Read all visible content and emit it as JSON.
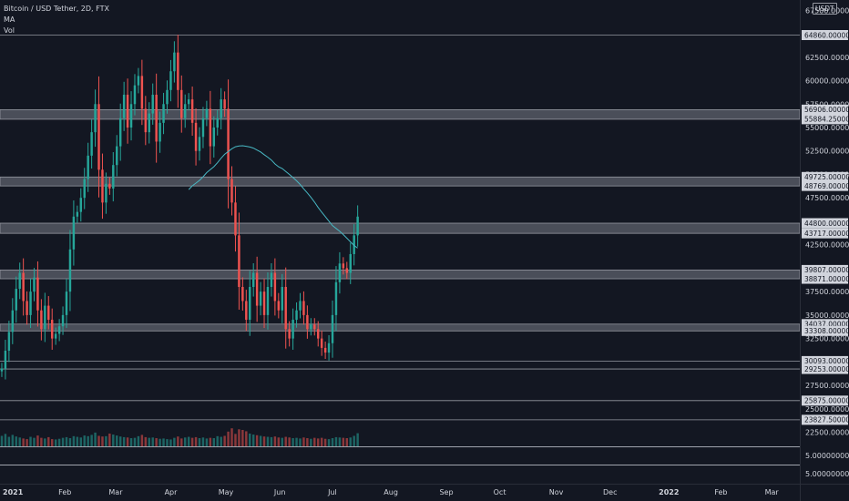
{
  "legend": {
    "symbol": "Bitcoin / USD Tether, 2D, FTX",
    "indicator1": "MA",
    "indicator2": "Vol"
  },
  "currency_badge": "USDT",
  "price_axis_labels": [
    "67500.00000000",
    "62500.00000000",
    "60000.00000000",
    "57500.00000000",
    "55000.00000000",
    "52500.00000000",
    "50000.00000000",
    "47500.00000000",
    "42500.00000000",
    "37500.00000000",
    "35000.00000000",
    "32500.00000000",
    "27500.00000000",
    "25000.00000000",
    "22500.00000000"
  ],
  "level_labels": [
    "64860.00000000",
    "56906.00000000",
    "55884.25000000",
    "49725.00000000",
    "48769.00000000",
    "44800.00000000",
    "43717.00000000",
    "39807.00000000",
    "38871.00000000",
    "34037.00000000",
    "33308.00000000",
    "30093.00000000",
    "29253.00000000",
    "25875.00000000",
    "23827.50000000"
  ],
  "sub_pane_labels": [
    "5.00000000",
    "5.00000000"
  ],
  "time_axis_labels": [
    "2021",
    "Feb",
    "Mar",
    "Apr",
    "May",
    "Jun",
    "Jul",
    "Aug",
    "Sep",
    "Oct",
    "Nov",
    "Dec",
    "2022",
    "Feb",
    "Mar"
  ],
  "colors": {
    "background": "#131722",
    "up": "#26a69a",
    "down": "#ef5350",
    "ma": "#48b8c4",
    "zone": "#787b86"
  },
  "chart_data": {
    "type": "candlestick",
    "title": "Bitcoin / USD Tether, 2D, FTX",
    "ylim": [
      21000,
      68600
    ],
    "x_range": [
      "2021-01-01",
      "2022-03-22"
    ],
    "zones": [
      [
        55884.25,
        56906
      ],
      [
        48769,
        49725
      ],
      [
        43717,
        44800
      ],
      [
        38871,
        39807
      ],
      [
        33308,
        34037
      ]
    ],
    "lines": [
      64860,
      30093,
      29253,
      25875,
      23827.5
    ],
    "closes": [
      29300,
      31200,
      33200,
      35500,
      37800,
      39500,
      36500,
      35000,
      37500,
      39000,
      35500,
      33500,
      36000,
      34500,
      32500,
      33000,
      33800,
      35000,
      37500,
      42000,
      45500,
      46000,
      47500,
      49500,
      52000,
      54500,
      57500,
      50500,
      47000,
      49000,
      48500,
      51000,
      53000,
      56000,
      58500,
      55000,
      57500,
      59500,
      60500,
      57000,
      54500,
      56500,
      58500,
      53500,
      55500,
      57500,
      59000,
      61000,
      63000,
      59000,
      56000,
      57500,
      58000,
      55500,
      52500,
      54000,
      56000,
      57000,
      53000,
      55000,
      56000,
      58000,
      57000,
      49500,
      47000,
      43500,
      38000,
      36500,
      34500,
      38000,
      39500,
      36000,
      37500,
      35000,
      38000,
      39500,
      36500,
      35500,
      38000,
      33500,
      32500,
      34500,
      35500,
      36500,
      35000,
      33500,
      34000,
      33500,
      32500,
      31500,
      31000,
      32000,
      35000,
      38500,
      40500,
      40000,
      39500,
      41500,
      43500,
      45500
    ],
    "volumes": [
      3200,
      3800,
      2900,
      3500,
      3000,
      2700,
      2400,
      2200,
      2900,
      2600,
      3300,
      2600,
      2400,
      2800,
      2200,
      2100,
      2300,
      2600,
      2800,
      2500,
      3100,
      2900,
      2700,
      3300,
      3100,
      3500,
      4200,
      3200,
      3000,
      3100,
      3900,
      3600,
      3300,
      3000,
      2800,
      2700,
      2500,
      2600,
      3100,
      3500,
      2800,
      2600,
      2700,
      2500,
      2300,
      2400,
      2200,
      2100,
      2600,
      3000,
      2400,
      2700,
      2900,
      2600,
      2800,
      2500,
      2700,
      2400,
      2600,
      2500,
      3100,
      2900,
      3200,
      4500,
      5500,
      3800,
      5200,
      5000,
      4600,
      3900,
      3600,
      3400,
      3200,
      3000,
      2900,
      2800,
      3000,
      2700,
      2600,
      2900,
      2700,
      2500,
      2600,
      2400,
      2700,
      2500,
      2300,
      2600,
      2400,
      2600,
      2300,
      2200,
      2500,
      2800,
      2700,
      2600,
      2500,
      2700,
      3200,
      4000
    ],
    "volume_ylim": [
      0,
      15000
    ],
    "moving_average_period": 100
  }
}
